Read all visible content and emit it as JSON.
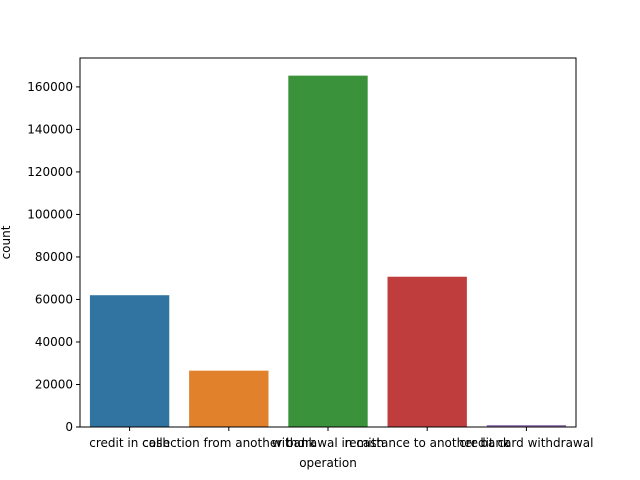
{
  "chart_data": {
    "type": "bar",
    "title": "",
    "xlabel": "operation",
    "ylabel": "count",
    "categories": [
      "credit in cash",
      "collection from another bank",
      "withdrawal in cash",
      "remittance to another bank",
      "credit card withdrawal"
    ],
    "values": [
      62000,
      26500,
      165300,
      70700,
      900
    ],
    "ylim": [
      0,
      173600
    ],
    "yticks": [
      0,
      20000,
      40000,
      60000,
      80000,
      100000,
      120000,
      140000,
      160000
    ],
    "grid": false,
    "colors": [
      "#3274a1",
      "#e1812c",
      "#3a923a",
      "#c03d3e",
      "#9372b2"
    ]
  }
}
